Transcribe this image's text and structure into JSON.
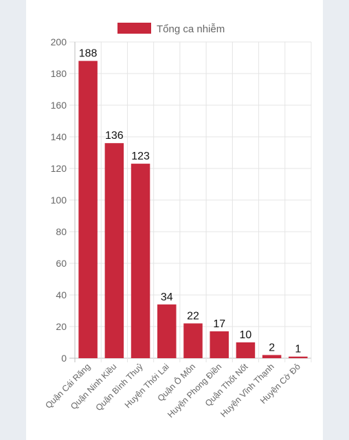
{
  "chart_data": {
    "type": "bar",
    "legend": {
      "label": "Tổng ca nhiễm",
      "position": "top-center"
    },
    "categories": [
      "Quận Cái Răng",
      "Quận Ninh Kiều",
      "Quận Bình Thuỷ",
      "Huyện Thới Lai",
      "Quận Ô Môn",
      "Huyện Phong Điền",
      "Quận Thốt Nốt",
      "Huyện Vĩnh Thạnh",
      "Huyện Cờ Đỏ"
    ],
    "series": [
      {
        "name": "Tổng ca nhiễm",
        "values": [
          188,
          136,
          123,
          34,
          22,
          17,
          10,
          2,
          1
        ]
      }
    ],
    "ylim": [
      0,
      200
    ],
    "yticks": [
      "0",
      "20",
      "40",
      "60",
      "80",
      "100",
      "120",
      "140",
      "160",
      "180",
      "200"
    ],
    "grid": true,
    "colors": {
      "bar": "#c8283c",
      "grid": "#e4e4e4",
      "axis": "#bdbdbd",
      "page_bg": "#e9edf2",
      "card_bg": "#ffffff"
    }
  }
}
